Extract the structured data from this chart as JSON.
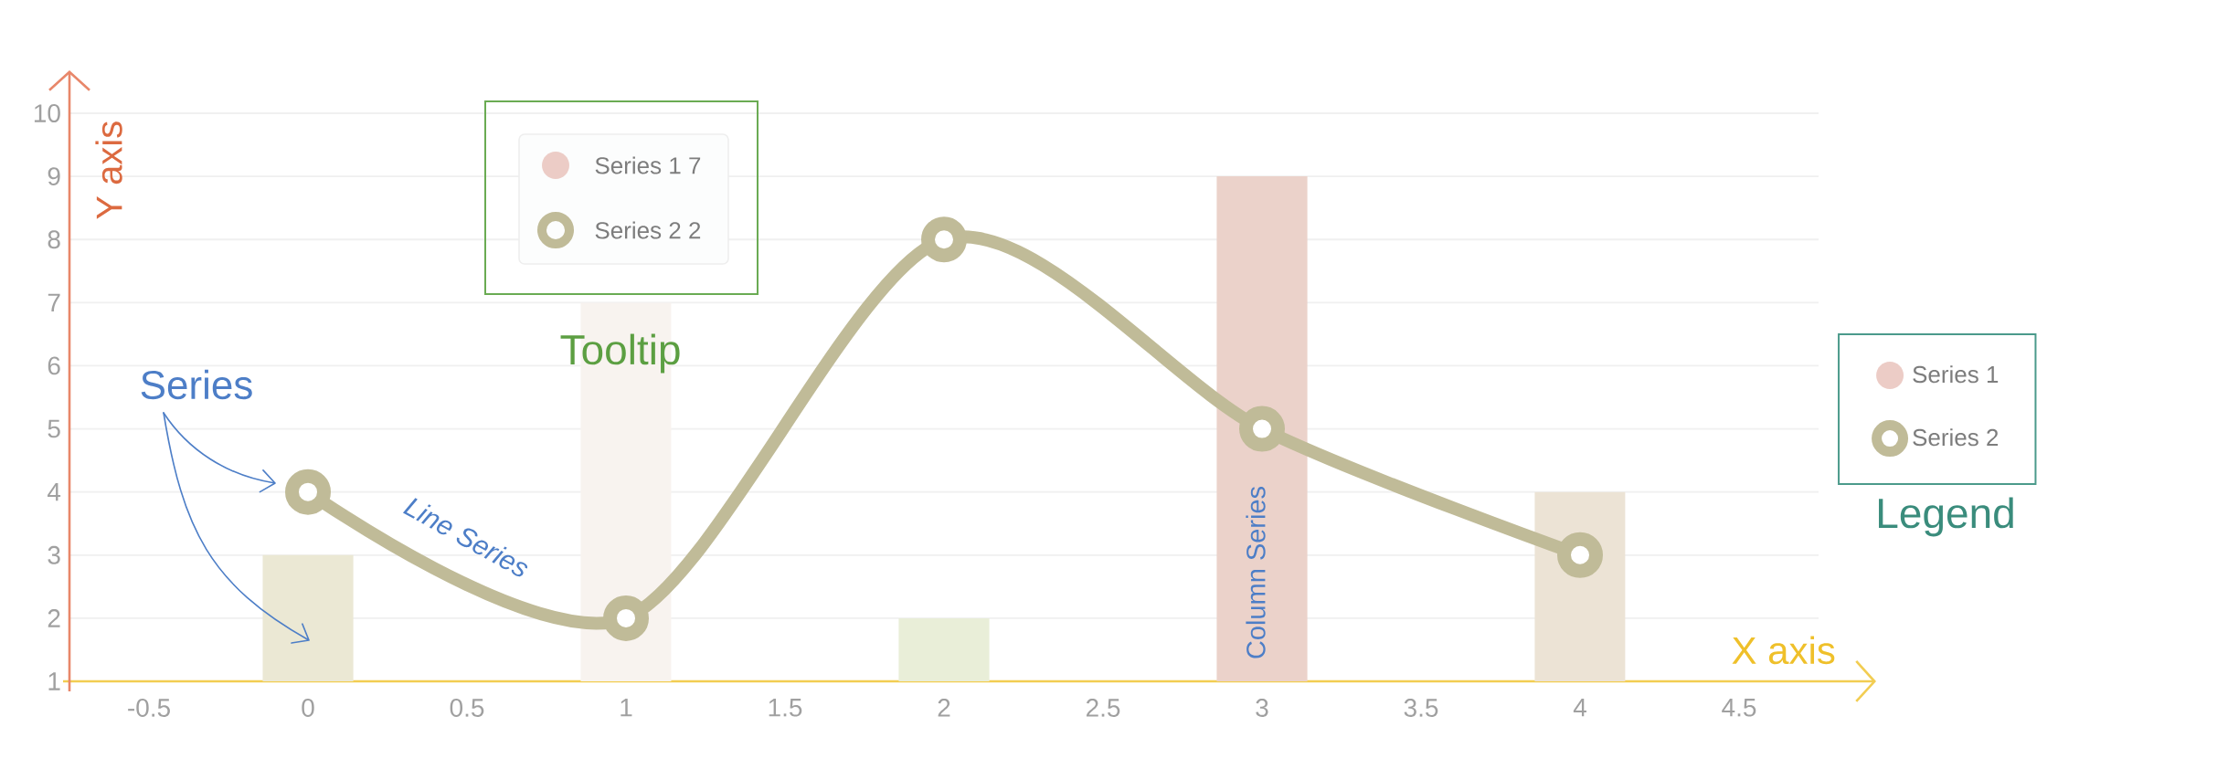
{
  "chart_data": {
    "type": "bar",
    "xlabel": "X axis",
    "ylabel": "Y axis",
    "x": [
      0,
      1,
      2,
      3,
      4
    ],
    "series": [
      {
        "name": "Series 1",
        "color": "#ecccc6",
        "colors": [
          "#ebe8d4",
          "#f8f3ef",
          "#e9eed8",
          "#ebd2ca",
          "#ece3d5"
        ],
        "values": [
          3,
          7,
          2,
          9,
          4
        ]
      },
      {
        "name": "Series 2",
        "type": "line",
        "color": "#c0bb98",
        "values": [
          4,
          2,
          8,
          5,
          3
        ]
      }
    ],
    "xlim": [
      -0.75,
      4.75
    ],
    "xticks": [
      -0.5,
      0,
      0.5,
      1,
      1.5,
      2,
      2.5,
      3,
      3.5,
      4,
      4.5
    ],
    "ylim": [
      1,
      10
    ],
    "yticks": [
      1,
      2,
      3,
      4,
      5,
      6,
      7,
      8,
      9,
      10
    ],
    "grid": "y",
    "legend": "right",
    "marker": "circle",
    "line_style": "solid",
    "annotations": [
      "Series",
      "Line Series",
      "Column Series",
      "Series 1 7",
      "Series 2 2",
      "Tooltip",
      "Legend"
    ]
  }
}
